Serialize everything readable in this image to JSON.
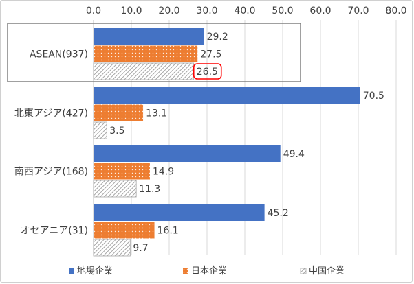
{
  "chart_data": {
    "type": "bar",
    "orientation": "horizontal",
    "categories": [
      "ASEAN(937)",
      "北東アジア(427)",
      "南西アジア(168)",
      "オセアニア(31)"
    ],
    "series": [
      {
        "name": "地場企業",
        "values": [
          29.2,
          70.5,
          49.4,
          45.2
        ],
        "color": "#4472C4",
        "pattern": "solid"
      },
      {
        "name": "日本企業",
        "values": [
          27.5,
          13.1,
          14.9,
          16.1
        ],
        "color": "#ED7D31",
        "pattern": "dots"
      },
      {
        "name": "中国企業",
        "values": [
          26.5,
          3.5,
          11.3,
          9.7
        ],
        "color": "#A5A5A5",
        "pattern": "diagonal-hatch"
      }
    ],
    "xlim": [
      0,
      80
    ],
    "xticks": [
      "0.0",
      "10.0",
      "20.0",
      "30.0",
      "40.0",
      "50.0",
      "60.0",
      "70.0",
      "80.0"
    ],
    "xaxis_position": "top",
    "legend_position": "bottom",
    "highlight": {
      "category_box": "ASEAN(937)",
      "circled_value": "26.5",
      "circle_color": "#FF0000"
    },
    "value_labels": [
      [
        "29.2",
        "27.5",
        "26.5"
      ],
      [
        "70.5",
        "13.1",
        "3.5"
      ],
      [
        "49.4",
        "14.9",
        "11.3"
      ],
      [
        "45.2",
        "16.1",
        "9.7"
      ]
    ]
  }
}
